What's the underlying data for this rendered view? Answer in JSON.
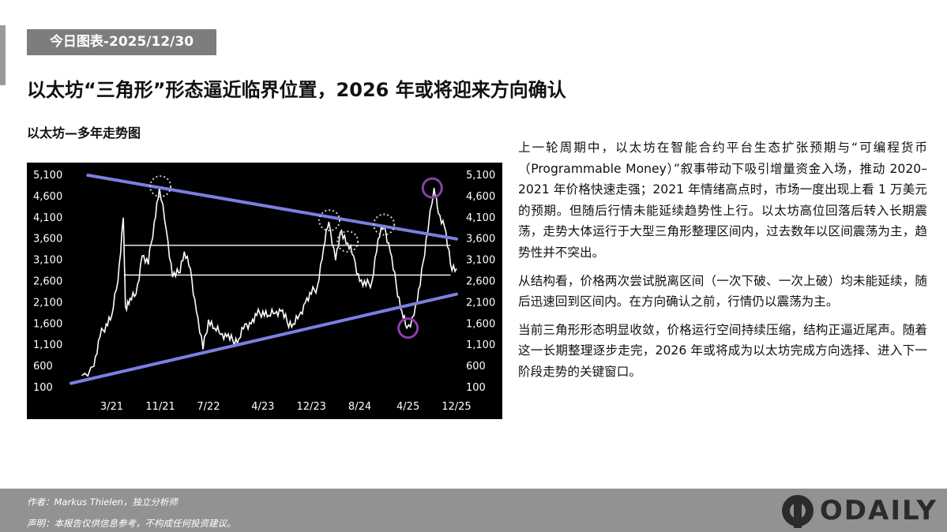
{
  "header": {
    "tag": "今日图表-2025/12/30",
    "title": "以太坊“三角形”形态逼近临界位置，2026 年或将迎来方向确认",
    "subtitle": "以太坊—多年走势图"
  },
  "body": {
    "paragraphs": [
      "上一轮周期中，以太坊在智能合约平台生态扩张预期与“可编程货币（Programmable Money）”叙事带动下吸引增量资金入场，推动 2020–2021 年价格快速走强；2021 年情绪高点时，市场一度出现上看 1 万美元的预期。但随后行情未能延续趋势性上行。以太坊高位回落后转入长期震荡，走势大体运行于大型三角形整理区间内，过去数年以区间震荡为主，趋势性并不突出。",
      "从结构看，价格两次尝试脱离区间（一次下破、一次上破）均未能延续，随后迅速回到区间内。在方向确认之前，行情仍以震荡为主。",
      "当前三角形形态明显收敛，价格运行空间持续压缩，结构正逼近尾声。随着这一长期整理逐步走完，2026 年或将成为以太坊完成方向选择、进入下一阶段走势的关键窗口。"
    ]
  },
  "footer": {
    "author": "作者：Markus Thielen，独立分析师",
    "disclaimer": "声明：本报告仅供信息参考，不构成任何投资建议。",
    "logo": "ODAILY"
  },
  "colors": {
    "trendline": "#7b7fe0",
    "circle_purple": "#8a3fa8",
    "circle_dotted": "#cccccc",
    "price": "#ffffff",
    "background": "#000000"
  },
  "chart_data": {
    "type": "line",
    "title": "以太坊—多年走势图",
    "x_tick_labels": [
      "3/21",
      "11/21",
      "7/22",
      "4/23",
      "12/23",
      "8/24",
      "4/25",
      "12/25"
    ],
    "y_tick_labels": [
      "5,100",
      "4,600",
      "4,100",
      "3,600",
      "3,100",
      "2,600",
      "2,100",
      "1,600",
      "1,100",
      "600",
      "100"
    ],
    "ylim": [
      100,
      5100
    ],
    "y_axis_both_sides": true,
    "series": [
      {
        "values_description_free": true,
        "x": [
          "2020-10",
          "2020-12",
          "2021-01",
          "2021-02",
          "2021-03",
          "2021-04",
          "2021-05-12",
          "2021-05-23",
          "2021-06",
          "2021-07",
          "2021-08",
          "2021-09",
          "2021-10",
          "2021-11-10",
          "2021-12",
          "2022-01",
          "2022-02",
          "2022-03",
          "2022-04",
          "2022-05",
          "2022-06-18",
          "2022-07",
          "2022-08",
          "2022-09",
          "2022-10",
          "2022-11",
          "2022-12",
          "2023-01",
          "2023-02",
          "2023-03",
          "2023-04",
          "2023-05",
          "2023-06",
          "2023-07",
          "2023-08",
          "2023-09",
          "2023-10",
          "2023-11",
          "2023-12",
          "2024-01",
          "2024-02",
          "2024-03-12",
          "2024-04",
          "2024-05",
          "2024-06",
          "2024-07",
          "2024-08",
          "2024-09",
          "2024-10",
          "2024-11",
          "2024-12-16",
          "2025-01",
          "2025-02",
          "2025-03",
          "2025-04-09",
          "2025-05",
          "2025-06",
          "2025-07",
          "2025-08-24",
          "2025-09",
          "2025-10",
          "2025-11",
          "2025-12"
        ],
        "values": [
          380,
          600,
          1300,
          1600,
          1800,
          2600,
          4100,
          2000,
          2200,
          2300,
          3200,
          3000,
          4000,
          4800,
          3800,
          2700,
          2800,
          3300,
          2900,
          1900,
          1000,
          1700,
          1500,
          1350,
          1300,
          1200,
          1250,
          1600,
          1600,
          1800,
          1900,
          1800,
          1850,
          1900,
          1650,
          1600,
          1800,
          2100,
          2300,
          2500,
          3400,
          4000,
          3100,
          3800,
          3500,
          3200,
          2600,
          2500,
          2600,
          3600,
          3900,
          3300,
          2500,
          1900,
          1500,
          1800,
          2500,
          3600,
          4800,
          4200,
          3900,
          3000,
          2900
        ]
      }
    ],
    "trendlines": [
      {
        "name": "upper",
        "x": [
          "2020-11",
          "2025-12"
        ],
        "values": [
          5100,
          3600
        ]
      },
      {
        "name": "lower",
        "x": [
          "2019-12",
          "2025-12"
        ],
        "values": [
          200,
          2300
        ]
      }
    ],
    "horizontal_lines": [
      3450,
      2750
    ],
    "marked_peaks_dotted": [
      "2021-11",
      "2024-03",
      "2024-06",
      "2024-12"
    ],
    "marked_extremes_purple": [
      "2025-04",
      "2025-08"
    ]
  }
}
